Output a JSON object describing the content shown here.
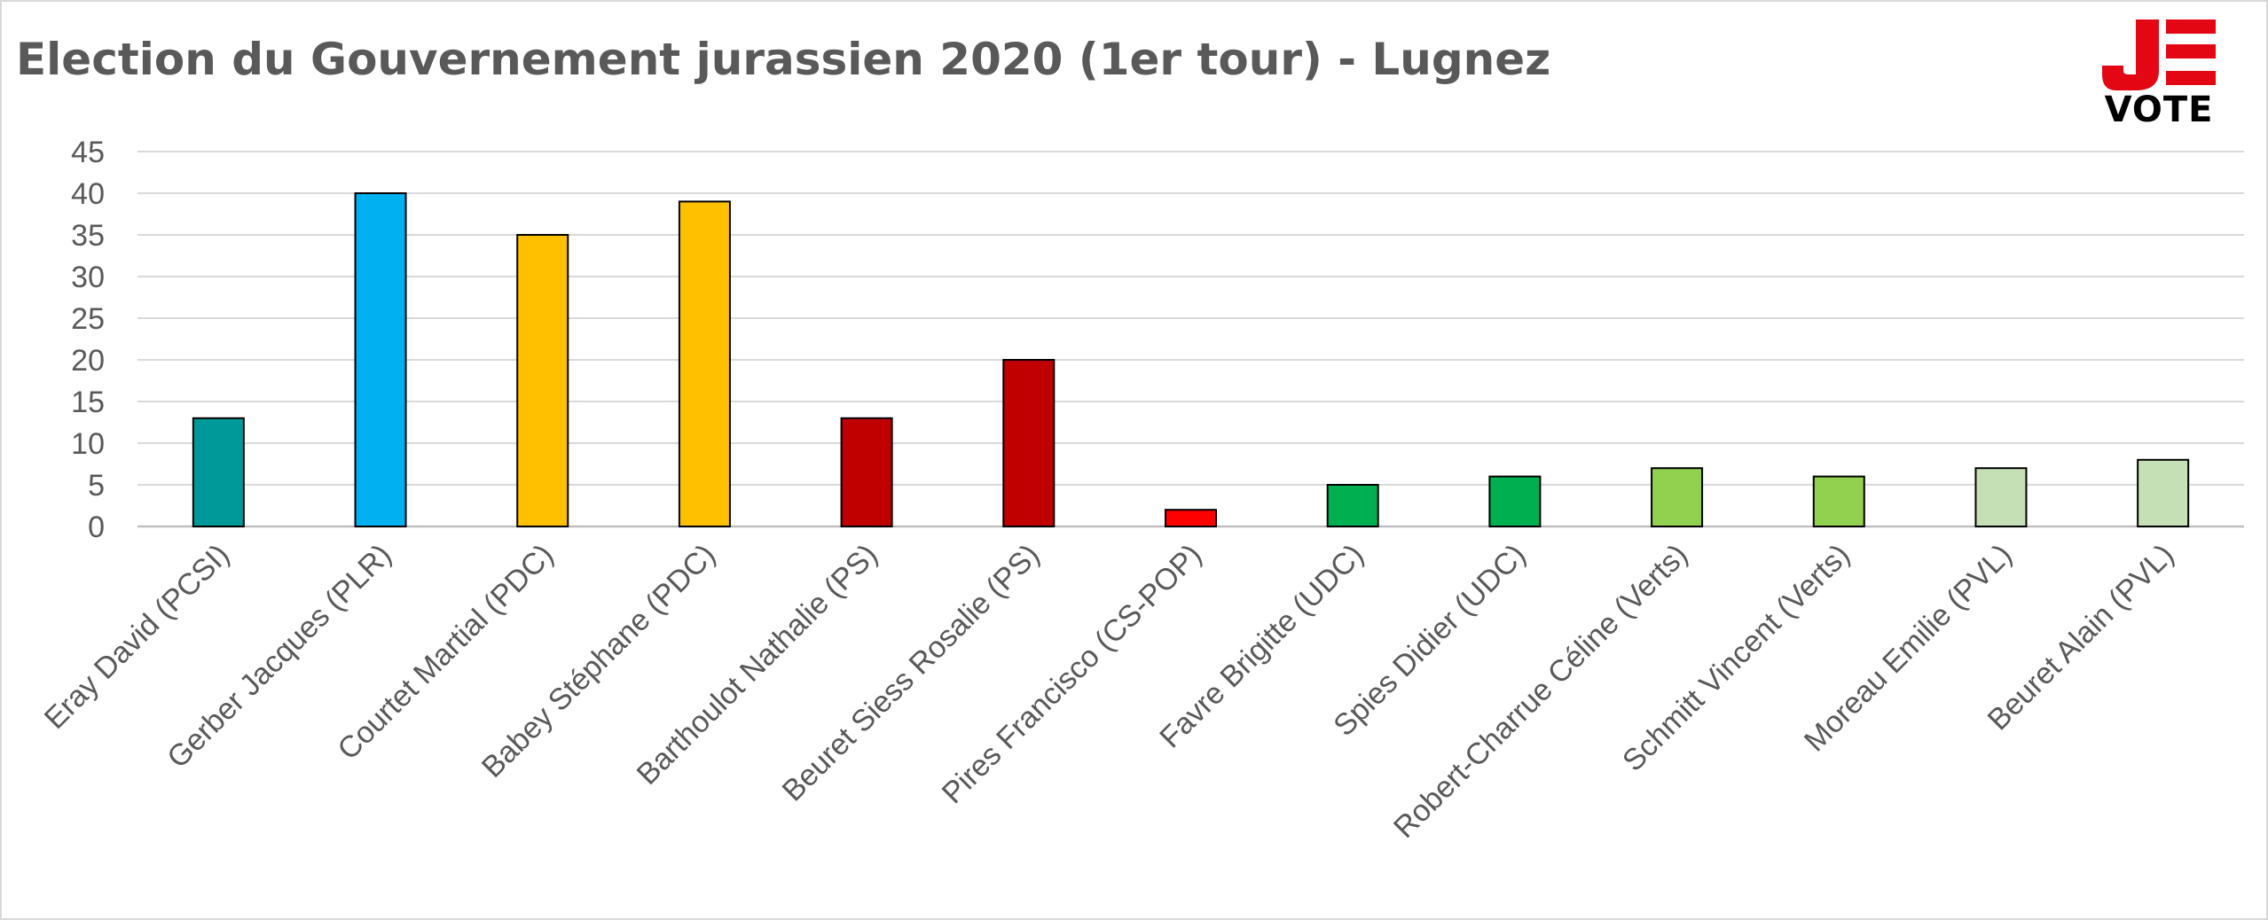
{
  "chart_data": {
    "type": "bar",
    "title": "Election du Gouvernement jurassien 2020 (1er tour) - Lugnez",
    "xlabel": "",
    "ylabel": "",
    "ylim": [
      0,
      45
    ],
    "yticks": [
      0,
      5,
      10,
      15,
      20,
      25,
      30,
      35,
      40,
      45
    ],
    "grid": true,
    "legend": "none",
    "categories": [
      "Eray David (PCSI)",
      "Gerber Jacques (PLR)",
      "Courtet Martial (PDC)",
      "Babey Stéphane (PDC)",
      "Barthoulot Nathalie (PS)",
      "Beuret Siess Rosalie (PS)",
      "Pires Francisco (CS-POP)",
      "Favre Brigitte (UDC)",
      "Spies Didier (UDC)",
      "Robert-Charrue Céline (Verts)",
      "Schmitt Vincent (Verts)",
      "Moreau Emilie (PVL)",
      "Beuret Alain (PVL)"
    ],
    "values": [
      13,
      40,
      35,
      39,
      13,
      20,
      2,
      5,
      6,
      7,
      6,
      7,
      8
    ],
    "colors": [
      "#009999",
      "#00b0f0",
      "#ffc000",
      "#ffc000",
      "#c00000",
      "#c00000",
      "#ff0000",
      "#00b050",
      "#00b050",
      "#92d050",
      "#92d050",
      "#c5e0b4",
      "#c5e0b4"
    ]
  },
  "logo": {
    "text": "VOTE",
    "color": "#e30613"
  }
}
